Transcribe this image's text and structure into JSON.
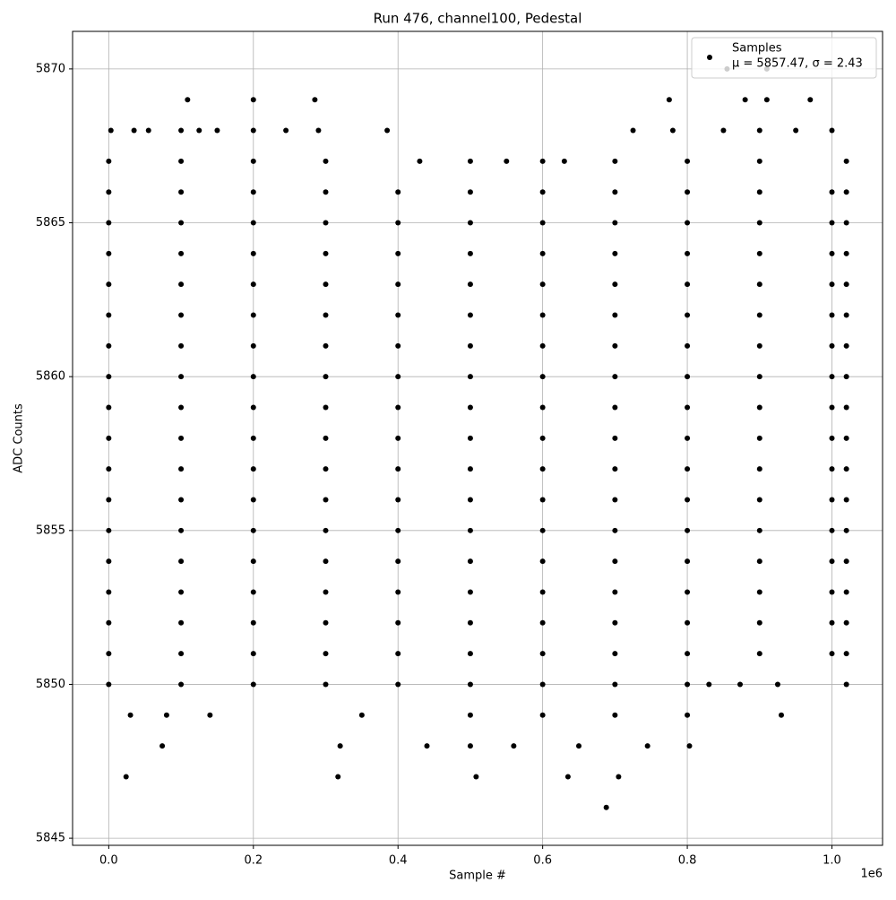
{
  "chart_data": {
    "type": "scatter",
    "title": "Run 476, channel100, Pedestal",
    "xlabel": "Sample #",
    "ylabel": "ADC Counts",
    "x_offset_label": "1e6",
    "xlim": [
      -50000,
      1070000
    ],
    "ylim": [
      5844.77,
      5871.22
    ],
    "xticks": [
      {
        "value": 0,
        "label": "0.0"
      },
      {
        "value": 200000,
        "label": "0.2"
      },
      {
        "value": 400000,
        "label": "0.4"
      },
      {
        "value": 600000,
        "label": "0.6"
      },
      {
        "value": 800000,
        "label": "0.8"
      },
      {
        "value": 1000000,
        "label": "1.0"
      }
    ],
    "yticks": [
      5845,
      5850,
      5855,
      5860,
      5865,
      5870
    ],
    "grid": true,
    "legend": "upper right",
    "color": "#000000",
    "series": [
      {
        "name": "Samples",
        "label2": "μ = 5857.47, σ = 2.43",
        "color": "#000000",
        "x": [
          0,
          100000,
          200000,
          300000,
          400000,
          500000,
          600000,
          700000,
          800000,
          900000,
          1000000,
          1020000,
          0,
          100000,
          200000,
          300000,
          400000,
          500000,
          600000,
          700000,
          800000,
          900000,
          1000000,
          1020000,
          0,
          100000,
          200000,
          300000,
          400000,
          500000,
          600000,
          700000,
          800000,
          900000,
          1000000,
          1020000,
          0,
          100000,
          200000,
          300000,
          400000,
          500000,
          600000,
          700000,
          800000,
          900000,
          1000000,
          1020000,
          0,
          100000,
          200000,
          300000,
          400000,
          500000,
          600000,
          700000,
          800000,
          900000,
          1000000,
          1020000,
          0,
          100000,
          200000,
          300000,
          400000,
          500000,
          600000,
          700000,
          800000,
          900000,
          1000000,
          1020000,
          0,
          100000,
          200000,
          300000,
          400000,
          500000,
          600000,
          700000,
          800000,
          900000,
          1000000,
          1020000,
          0,
          100000,
          200000,
          300000,
          400000,
          500000,
          600000,
          700000,
          800000,
          900000,
          1000000,
          1020000,
          0,
          100000,
          200000,
          300000,
          400000,
          500000,
          600000,
          700000,
          800000,
          900000,
          1000000,
          1020000,
          0,
          100000,
          200000,
          300000,
          400000,
          500000,
          600000,
          700000,
          800000,
          900000,
          1000000,
          1020000,
          0,
          100000,
          200000,
          300000,
          400000,
          500000,
          600000,
          700000,
          800000,
          900000,
          1000000,
          1020000,
          0,
          100000,
          200000,
          300000,
          400000,
          500000,
          600000,
          700000,
          800000,
          900000,
          1000000,
          1020000,
          0,
          100000,
          200000,
          300000,
          400000,
          500000,
          600000,
          700000,
          800000,
          900000,
          1000000,
          1020000,
          0,
          100000,
          200000,
          300000,
          400000,
          500000,
          600000,
          700000,
          800000,
          900000,
          1000000,
          1020000,
          0,
          100000,
          200000,
          300000,
          400000,
          500000,
          600000,
          700000,
          800000,
          900000,
          1000000,
          1020000,
          0,
          100000,
          200000,
          300000,
          400000,
          500000,
          600000,
          700000,
          800000,
          900000,
          1000000,
          1020000,
          0,
          100000,
          200000,
          300000,
          430000,
          500000,
          550000,
          600000,
          630000,
          700000,
          800000,
          900000,
          1020000,
          0,
          100000,
          200000,
          300000,
          400000,
          500000,
          600000,
          700000,
          800000,
          830000,
          873000,
          925000,
          1020000,
          3000,
          35000,
          55000,
          100000,
          125000,
          150000,
          200000,
          245000,
          290000,
          385000,
          725000,
          780000,
          850000,
          900000,
          950000,
          1000000,
          109000,
          200000,
          285000,
          775000,
          880000,
          910000,
          970000,
          855000,
          910000,
          30000,
          80000,
          140000,
          350000,
          500000,
          600000,
          700000,
          800000,
          930000,
          74000,
          320000,
          440000,
          500000,
          560000,
          650000,
          745000,
          803000,
          24000,
          317000,
          508000,
          635000,
          705000,
          688000
        ],
        "values": [
          5851,
          5851,
          5851,
          5851,
          5851,
          5851,
          5851,
          5851,
          5851,
          5851,
          5851,
          5851,
          5852,
          5852,
          5852,
          5852,
          5852,
          5852,
          5852,
          5852,
          5852,
          5852,
          5852,
          5852,
          5853,
          5853,
          5853,
          5853,
          5853,
          5853,
          5853,
          5853,
          5853,
          5853,
          5853,
          5853,
          5854,
          5854,
          5854,
          5854,
          5854,
          5854,
          5854,
          5854,
          5854,
          5854,
          5854,
          5854,
          5855,
          5855,
          5855,
          5855,
          5855,
          5855,
          5855,
          5855,
          5855,
          5855,
          5855,
          5855,
          5856,
          5856,
          5856,
          5856,
          5856,
          5856,
          5856,
          5856,
          5856,
          5856,
          5856,
          5856,
          5857,
          5857,
          5857,
          5857,
          5857,
          5857,
          5857,
          5857,
          5857,
          5857,
          5857,
          5857,
          5858,
          5858,
          5858,
          5858,
          5858,
          5858,
          5858,
          5858,
          5858,
          5858,
          5858,
          5858,
          5859,
          5859,
          5859,
          5859,
          5859,
          5859,
          5859,
          5859,
          5859,
          5859,
          5859,
          5859,
          5860,
          5860,
          5860,
          5860,
          5860,
          5860,
          5860,
          5860,
          5860,
          5860,
          5860,
          5860,
          5861,
          5861,
          5861,
          5861,
          5861,
          5861,
          5861,
          5861,
          5861,
          5861,
          5861,
          5861,
          5862,
          5862,
          5862,
          5862,
          5862,
          5862,
          5862,
          5862,
          5862,
          5862,
          5862,
          5862,
          5863,
          5863,
          5863,
          5863,
          5863,
          5863,
          5863,
          5863,
          5863,
          5863,
          5863,
          5863,
          5864,
          5864,
          5864,
          5864,
          5864,
          5864,
          5864,
          5864,
          5864,
          5864,
          5864,
          5864,
          5865,
          5865,
          5865,
          5865,
          5865,
          5865,
          5865,
          5865,
          5865,
          5865,
          5865,
          5865,
          5866,
          5866,
          5866,
          5866,
          5866,
          5866,
          5866,
          5866,
          5866,
          5866,
          5866,
          5866,
          5867,
          5867,
          5867,
          5867,
          5867,
          5867,
          5867,
          5867,
          5867,
          5867,
          5867,
          5867,
          5867,
          5850,
          5850,
          5850,
          5850,
          5850,
          5850,
          5850,
          5850,
          5850,
          5850,
          5850,
          5850,
          5850,
          5868,
          5868,
          5868,
          5868,
          5868,
          5868,
          5868,
          5868,
          5868,
          5868,
          5868,
          5868,
          5868,
          5868,
          5868,
          5868,
          5869,
          5869,
          5869,
          5869,
          5869,
          5869,
          5869,
          5870,
          5870,
          5849,
          5849,
          5849,
          5849,
          5849,
          5849,
          5849,
          5849,
          5849,
          5848,
          5848,
          5848,
          5848,
          5848,
          5848,
          5848,
          5848,
          5847,
          5847,
          5847,
          5847,
          5847,
          5846
        ]
      }
    ]
  }
}
